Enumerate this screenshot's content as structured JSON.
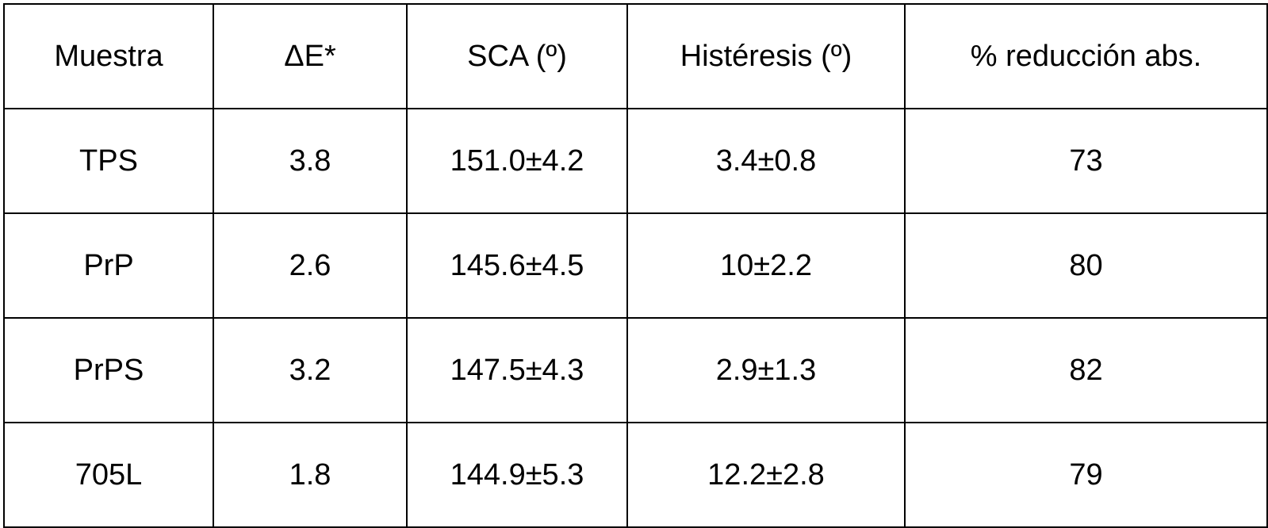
{
  "table": {
    "headers": [
      "Muestra",
      "ΔE*",
      "SCA (º)",
      "Histéresis (º)",
      "% reducción abs."
    ],
    "rows": [
      [
        "TPS",
        "3.8",
        "151.0±4.2",
        "3.4±0.8",
        "73"
      ],
      [
        "PrP",
        "2.6",
        "145.6±4.5",
        "10±2.2",
        "80"
      ],
      [
        "PrPS",
        "3.2",
        "147.5±4.3",
        "2.9±1.3",
        "82"
      ],
      [
        "705L",
        "1.8",
        "144.9±5.3",
        "12.2±2.8",
        "79"
      ]
    ]
  }
}
